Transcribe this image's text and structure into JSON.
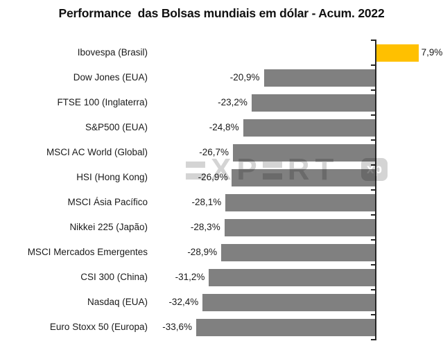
{
  "chart_data": {
    "type": "bar",
    "orientation": "horizontal",
    "title": "Performance  das Bolsas mundiais em dólar - Acum. 2022",
    "categories": [
      "Ibovespa (Brasil)",
      "Dow Jones (EUA)",
      "FTSE 100 (Inglaterra)",
      "S&P500 (EUA)",
      "MSCI AC World (Global)",
      "HSI (Hong Kong)",
      "MSCI Ásia Pacífico",
      "Nikkei 225 (Japão)",
      "MSCI Mercados Emergentes",
      "CSI 300 (China)",
      "Nasdaq (EUA)",
      "Euro Stoxx 50 (Europa)"
    ],
    "values": [
      7.9,
      -20.9,
      -23.2,
      -24.8,
      -26.7,
      -26.9,
      -28.1,
      -28.3,
      -28.9,
      -31.2,
      -32.4,
      -33.6
    ],
    "value_labels": [
      "7,9%",
      "-20,9%",
      "-23,2%",
      "-24,8%",
      "-26,7%",
      "-26,9%",
      "-28,1%",
      "-28,3%",
      "-28,9%",
      "-31,2%",
      "-32,4%",
      "-33,6%"
    ],
    "xlim": [
      -33.6,
      7.9
    ],
    "grid": false,
    "legend": false,
    "unit": "%",
    "bar_colors": {
      "positive": "#FFC000",
      "negative": "#808080"
    },
    "axis_color": "#262626",
    "label_color": "#1a1a1a",
    "title_color": "#111111"
  },
  "watermark": {
    "letters": [
      "E",
      "X",
      "P",
      "E",
      "R",
      "T"
    ],
    "logo_text": "xp",
    "color": "#d4d4d4"
  }
}
